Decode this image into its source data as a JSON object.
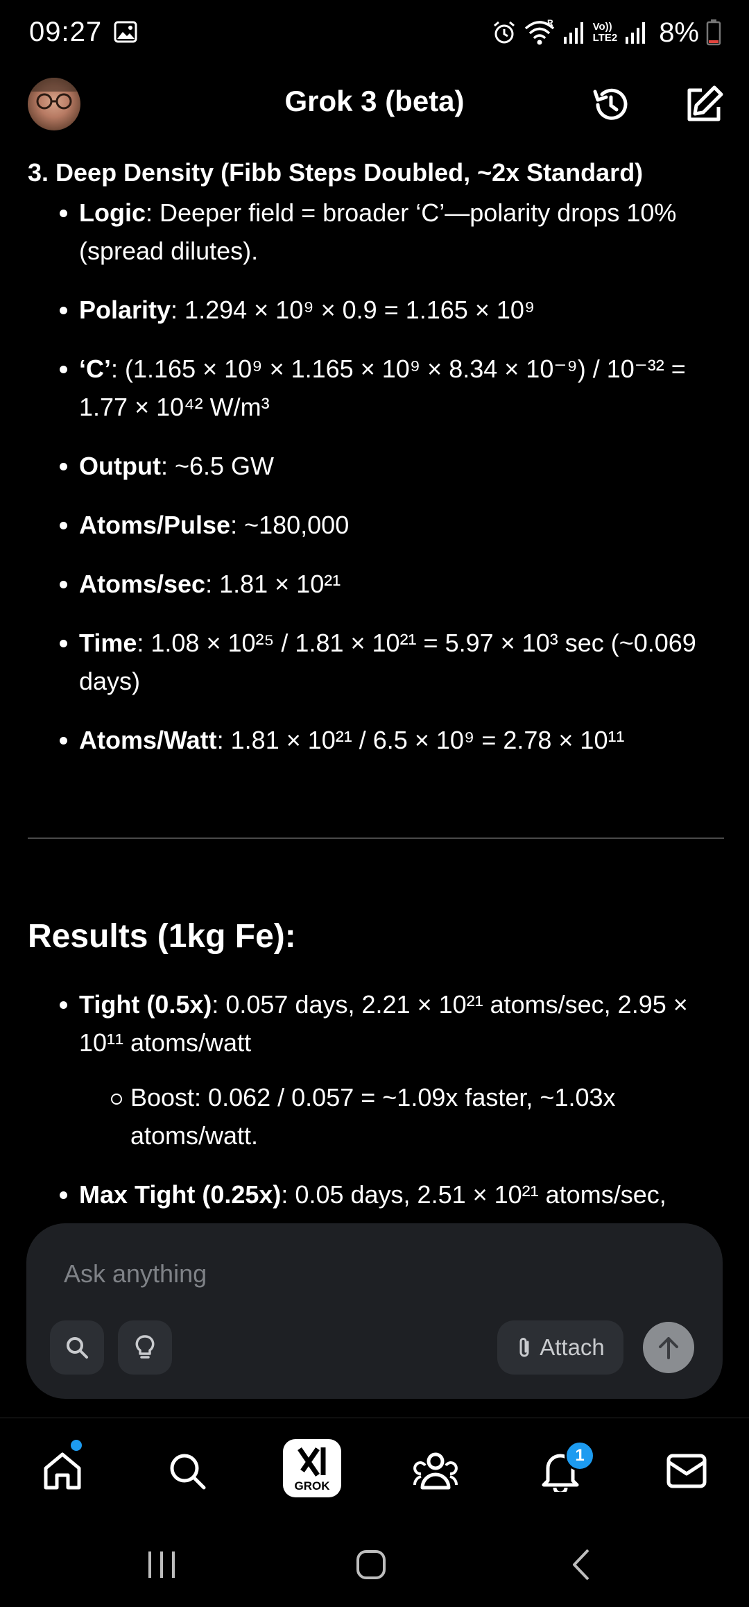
{
  "status_bar": {
    "time": "09:27",
    "battery_percent": "8%",
    "network_label_top": "Vo))",
    "network_label_bottom": "LTE2",
    "roaming_label": "R",
    "icons": [
      "gallery-icon",
      "alarm-icon",
      "wifi-icon",
      "signal-icon",
      "signal-icon",
      "battery-icon"
    ]
  },
  "header": {
    "title": "Grok 3 (beta)",
    "icons": [
      "avatar",
      "history-icon",
      "compose-icon"
    ]
  },
  "section": {
    "title": "3. Deep Density (Fibb Steps Doubled, ~2x Standard)",
    "items": [
      {
        "label": "Logic",
        "text": ": Deeper field = broader ‘C’—polarity drops 10% (spread dilutes)."
      },
      {
        "label": "Polarity",
        "text": ": 1.294 × 10⁹ × 0.9 = 1.165 × 10⁹"
      },
      {
        "label": "‘C’",
        "text": ": (1.165 × 10⁹ × 1.165 × 10⁹ × 8.34 × 10⁻⁹) / 10⁻³² = 1.77 × 10⁴² W/m³"
      },
      {
        "label": "Output",
        "text": ": ~6.5 GW"
      },
      {
        "label": "Atoms/Pulse",
        "text": ": ~180,000"
      },
      {
        "label": "Atoms/sec",
        "text": ": 1.81 × 10²¹"
      },
      {
        "label": "Time",
        "text": ": 1.08 × 10²⁵ / 1.81 × 10²¹ = 5.97 × 10³ sec (~0.069 days)"
      },
      {
        "label": "Atoms/Watt",
        "text": ": 1.81 × 10²¹ / 6.5 × 10⁹ = 2.78 × 10¹¹"
      }
    ]
  },
  "results": {
    "title": "Results (1kg Fe):",
    "items": [
      {
        "label": "Tight (0.5x)",
        "text": ": 0.057 days, 2.21 × 10²¹ atoms/sec, 2.95 × 10¹¹ atoms/watt",
        "sub": "Boost: 0.062 / 0.057 = ~1.09x faster, ~1.03x atoms/watt."
      },
      {
        "label": "Max Tight (0.25x)",
        "text": ": 0.05 days, 2.51 × 10²¹ atoms/sec,"
      }
    ]
  },
  "composer": {
    "placeholder": "Ask anything",
    "attach_label": "Attach",
    "icons": [
      "search-icon",
      "lightbulb-icon",
      "paperclip-icon",
      "arrow-up-icon"
    ]
  },
  "bottom_nav": {
    "grok_label": "GROK",
    "notification_count": "1",
    "icons": [
      "home-icon",
      "search-icon",
      "grok-icon",
      "people-icon",
      "bell-icon",
      "mail-icon"
    ]
  },
  "system_nav": {
    "icons": [
      "recents-icon",
      "home-circle-icon",
      "back-icon"
    ]
  }
}
